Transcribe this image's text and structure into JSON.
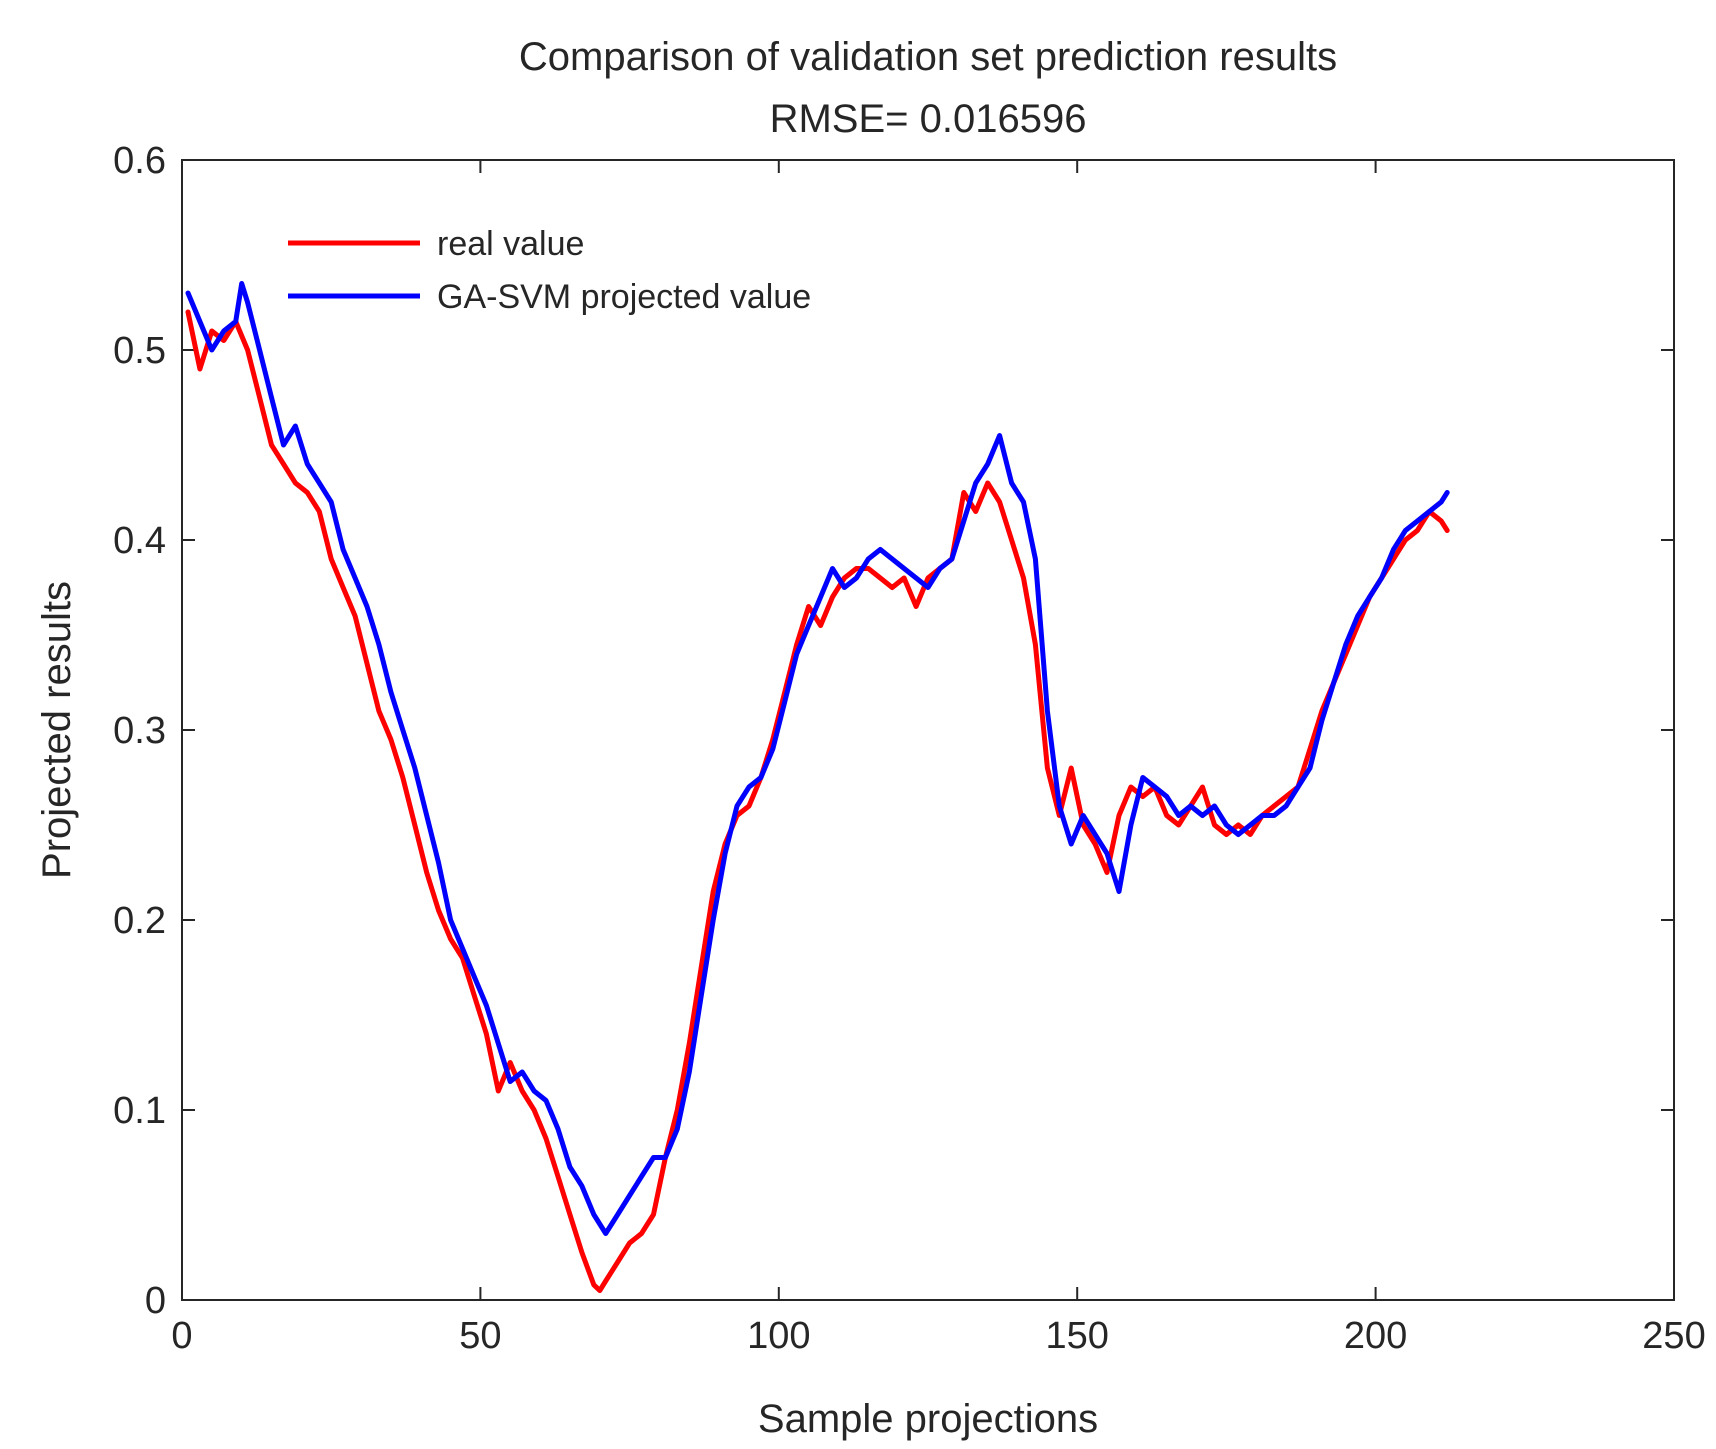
{
  "chart_data": {
    "type": "line",
    "title": "Comparison of validation set prediction results",
    "subtitle": "RMSE= 0.016596",
    "xlabel": "Sample projections",
    "ylabel": "Projected results",
    "xlim": [
      0,
      250
    ],
    "ylim": [
      0,
      0.6
    ],
    "xticks": [
      0,
      50,
      100,
      150,
      200,
      250
    ],
    "yticks": [
      0,
      0.1,
      0.2,
      0.3,
      0.4,
      0.5,
      0.6
    ],
    "xtick_labels": [
      "0",
      "50",
      "100",
      "150",
      "200",
      "250"
    ],
    "ytick_labels": [
      "0",
      "0.1",
      "0.2",
      "0.3",
      "0.4",
      "0.5",
      "0.6"
    ],
    "grid": false,
    "legend_position": "top-left",
    "series": [
      {
        "name": "real value",
        "color": "#ff0000",
        "x": [
          1,
          3,
          5,
          7,
          9,
          11,
          13,
          15,
          17,
          19,
          21,
          23,
          25,
          27,
          29,
          31,
          33,
          35,
          37,
          39,
          41,
          43,
          45,
          47,
          49,
          51,
          53,
          55,
          57,
          59,
          61,
          63,
          65,
          67,
          69,
          70,
          71,
          73,
          75,
          77,
          79,
          81,
          83,
          85,
          87,
          89,
          91,
          93,
          95,
          97,
          99,
          101,
          103,
          105,
          107,
          109,
          111,
          113,
          115,
          117,
          119,
          121,
          123,
          125,
          127,
          129,
          131,
          133,
          135,
          137,
          139,
          141,
          143,
          145,
          147,
          149,
          151,
          153,
          155,
          157,
          159,
          161,
          163,
          165,
          167,
          169,
          171,
          173,
          175,
          177,
          179,
          181,
          183,
          185,
          187,
          189,
          191,
          193,
          195,
          197,
          199,
          201,
          203,
          205,
          207,
          209,
          211,
          212
        ],
        "values": [
          0.52,
          0.49,
          0.51,
          0.505,
          0.515,
          0.5,
          0.475,
          0.45,
          0.44,
          0.43,
          0.425,
          0.415,
          0.39,
          0.375,
          0.36,
          0.335,
          0.31,
          0.295,
          0.275,
          0.25,
          0.225,
          0.205,
          0.19,
          0.18,
          0.16,
          0.14,
          0.11,
          0.125,
          0.11,
          0.1,
          0.085,
          0.065,
          0.045,
          0.025,
          0.008,
          0.005,
          0.01,
          0.02,
          0.03,
          0.035,
          0.045,
          0.075,
          0.1,
          0.135,
          0.175,
          0.215,
          0.24,
          0.255,
          0.26,
          0.275,
          0.295,
          0.32,
          0.345,
          0.365,
          0.355,
          0.37,
          0.38,
          0.385,
          0.385,
          0.38,
          0.375,
          0.38,
          0.365,
          0.38,
          0.385,
          0.39,
          0.425,
          0.415,
          0.43,
          0.42,
          0.4,
          0.38,
          0.345,
          0.28,
          0.255,
          0.28,
          0.25,
          0.24,
          0.225,
          0.255,
          0.27,
          0.265,
          0.27,
          0.255,
          0.25,
          0.26,
          0.27,
          0.25,
          0.245,
          0.25,
          0.245,
          0.255,
          0.26,
          0.265,
          0.27,
          0.29,
          0.31,
          0.325,
          0.34,
          0.355,
          0.37,
          0.38,
          0.39,
          0.4,
          0.405,
          0.415,
          0.41,
          0.405
        ]
      },
      {
        "name": "GA-SVM projected value",
        "color": "#0000ff",
        "x": [
          1,
          3,
          5,
          7,
          9,
          10,
          11,
          13,
          15,
          17,
          19,
          21,
          23,
          25,
          27,
          29,
          31,
          33,
          35,
          37,
          39,
          41,
          43,
          45,
          47,
          49,
          51,
          53,
          55,
          57,
          59,
          61,
          63,
          65,
          67,
          69,
          71,
          73,
          75,
          77,
          79,
          81,
          83,
          85,
          87,
          89,
          91,
          93,
          95,
          97,
          99,
          101,
          103,
          105,
          107,
          109,
          111,
          113,
          115,
          117,
          119,
          121,
          123,
          125,
          127,
          129,
          131,
          133,
          135,
          137,
          139,
          141,
          143,
          145,
          147,
          149,
          151,
          153,
          155,
          157,
          159,
          161,
          163,
          165,
          167,
          169,
          171,
          173,
          175,
          177,
          179,
          181,
          183,
          185,
          187,
          189,
          191,
          193,
          195,
          197,
          199,
          201,
          203,
          205,
          207,
          209,
          211,
          212
        ],
        "values": [
          0.53,
          0.515,
          0.5,
          0.51,
          0.515,
          0.535,
          0.525,
          0.5,
          0.475,
          0.45,
          0.46,
          0.44,
          0.43,
          0.42,
          0.395,
          0.38,
          0.365,
          0.345,
          0.32,
          0.3,
          0.28,
          0.255,
          0.23,
          0.2,
          0.185,
          0.17,
          0.155,
          0.135,
          0.115,
          0.12,
          0.11,
          0.105,
          0.09,
          0.07,
          0.06,
          0.045,
          0.035,
          0.045,
          0.055,
          0.065,
          0.075,
          0.075,
          0.09,
          0.12,
          0.16,
          0.2,
          0.235,
          0.26,
          0.27,
          0.275,
          0.29,
          0.315,
          0.34,
          0.355,
          0.37,
          0.385,
          0.375,
          0.38,
          0.39,
          0.395,
          0.39,
          0.385,
          0.38,
          0.375,
          0.385,
          0.39,
          0.41,
          0.43,
          0.44,
          0.455,
          0.43,
          0.42,
          0.39,
          0.31,
          0.26,
          0.24,
          0.255,
          0.245,
          0.235,
          0.215,
          0.25,
          0.275,
          0.27,
          0.265,
          0.255,
          0.26,
          0.255,
          0.26,
          0.25,
          0.245,
          0.25,
          0.255,
          0.255,
          0.26,
          0.27,
          0.28,
          0.305,
          0.325,
          0.345,
          0.36,
          0.37,
          0.38,
          0.395,
          0.405,
          0.41,
          0.415,
          0.42,
          0.425
        ]
      }
    ]
  }
}
